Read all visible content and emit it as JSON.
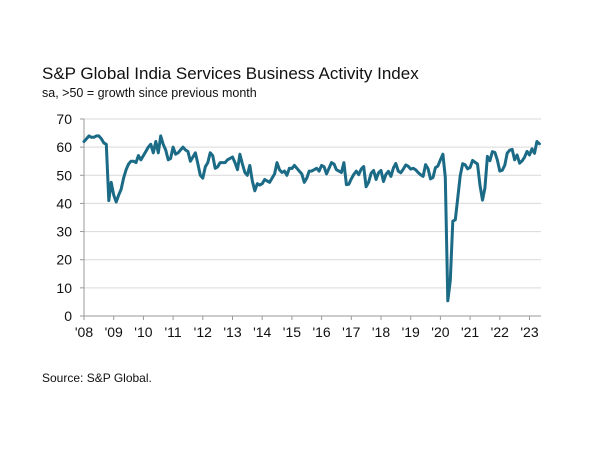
{
  "chart_data": {
    "type": "line",
    "title": "S&P Global India Services Business Activity Index",
    "subtitle": "sa, >50 = growth since previous month",
    "source": "Source: S&P Global.",
    "xlabel": "",
    "ylabel": "",
    "ylim": [
      0,
      70
    ],
    "yticks": [
      0,
      10,
      20,
      30,
      40,
      50,
      60,
      70
    ],
    "xticks": [
      "'08",
      "'09",
      "'10",
      "'11",
      "'12",
      "'13",
      "'14",
      "'15",
      "'16",
      "'17",
      "'18",
      "'19",
      "'20",
      "'21",
      "'22",
      "'23"
    ],
    "grid": true,
    "line_color": "#1b6a86",
    "x_start": "2008-01",
    "frequency": "monthly",
    "series": [
      {
        "values": [
          62,
          63,
          64,
          63.5,
          63.5,
          64,
          64,
          63,
          61.5,
          61,
          41,
          47.5,
          43,
          40.5,
          43,
          45,
          49,
          52,
          54,
          55,
          55,
          54.5,
          57,
          55.5,
          57,
          58.5,
          60,
          61,
          58,
          62,
          58,
          64,
          61,
          59,
          55.5,
          56,
          60,
          57.5,
          58,
          59,
          60,
          59,
          58.5,
          55,
          56.5,
          58,
          54,
          50,
          49,
          53,
          54.5,
          58,
          57,
          52.5,
          53,
          54.5,
          54.5,
          54.5,
          55.5,
          56,
          56.5,
          54.5,
          52,
          57.5,
          54,
          51,
          50,
          53.5,
          48,
          44.5,
          47,
          46.5,
          47,
          48.5,
          48,
          47.5,
          49,
          50.5,
          54.5,
          52,
          51,
          51.5,
          50,
          52.5,
          52.4,
          53.5,
          52.5,
          51.5,
          50.5,
          47.5,
          49,
          51.5,
          51.5,
          52,
          52.5,
          51.5,
          53.5,
          53,
          50.5,
          52.5,
          54.5,
          54,
          52,
          51.5,
          51,
          54.5,
          46.7,
          46.8,
          48.7,
          50.3,
          51.5,
          50.2,
          52.2,
          53.1,
          45.9,
          47.5,
          50.7,
          51.7,
          48.5,
          50.9,
          51.7,
          47.8,
          50.3,
          51.4,
          49.6,
          52.6,
          54.2,
          51.5,
          50.9,
          52.2,
          53.7,
          53.2,
          52.2,
          52.5,
          52,
          51,
          50.2,
          49.6,
          53.8,
          52.4,
          48.7,
          49.2,
          52.7,
          53.3,
          55.5,
          57.5,
          49.3,
          5.4,
          12.6,
          33.7,
          34.2,
          41.8,
          49.8,
          54.1,
          53.7,
          52.3,
          52.8,
          55.3,
          54.6,
          54,
          46.4,
          41.2,
          45.4,
          56.7,
          55.2,
          58.4,
          58.1,
          55.5,
          51.5,
          51.8,
          53.6,
          57.9,
          58.9,
          59.2,
          55.5,
          57.2,
          54.3,
          55.1,
          56.4,
          58.5,
          57.2,
          59.4,
          57.8,
          62,
          61.2
        ]
      }
    ]
  }
}
